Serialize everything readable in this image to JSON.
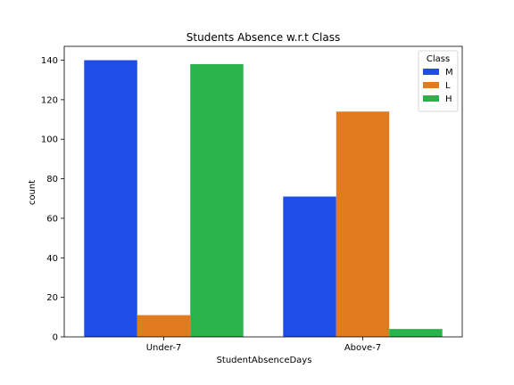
{
  "chart_data": {
    "type": "bar",
    "title": "Students Absence w.r.t Class",
    "xlabel": "StudentAbsenceDays",
    "ylabel": "count",
    "categories": [
      "Under-7",
      "Above-7"
    ],
    "series": [
      {
        "name": "M",
        "values": [
          140,
          71
        ],
        "color": "#1f4ee6"
      },
      {
        "name": "L",
        "values": [
          11,
          114
        ],
        "color": "#e07b1f"
      },
      {
        "name": "H",
        "values": [
          138,
          4
        ],
        "color": "#2ab34a"
      }
    ],
    "ylim": [
      0,
      147
    ],
    "yticks": [
      0,
      20,
      40,
      60,
      80,
      100,
      120,
      140
    ],
    "legend": {
      "title": "Class",
      "placement": "top-right"
    },
    "grid": false
  }
}
